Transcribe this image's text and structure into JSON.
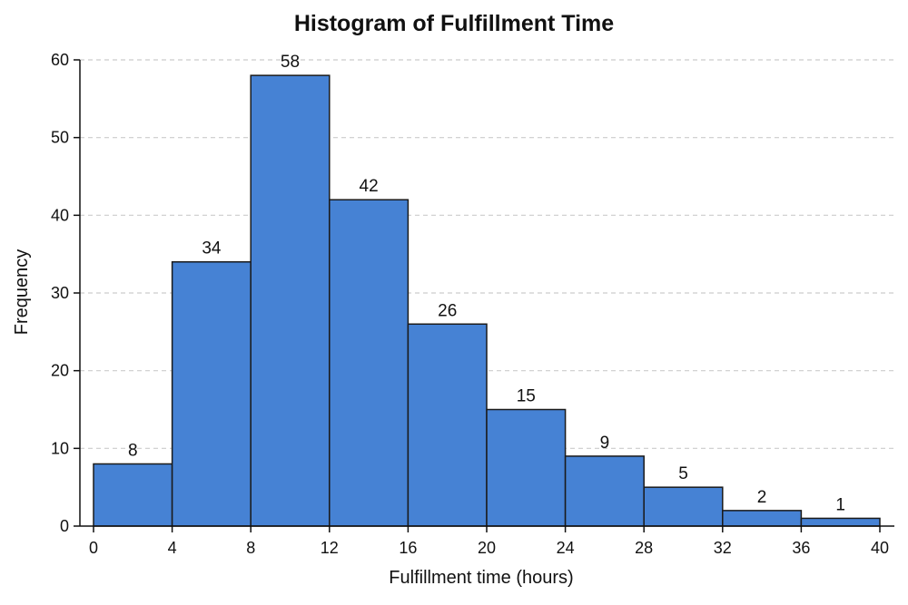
{
  "chart_data": {
    "type": "bar",
    "title": "Histogram of Fulfillment Time",
    "xlabel": "Fulfillment time (hours)",
    "ylabel": "Frequency",
    "bin_edges": [
      0,
      4,
      8,
      12,
      16,
      20,
      24,
      28,
      32,
      36,
      40
    ],
    "bars": [
      {
        "start": 0,
        "end": 4,
        "value": 8
      },
      {
        "start": 4,
        "end": 8,
        "value": 34
      },
      {
        "start": 8,
        "end": 12,
        "value": 58
      },
      {
        "start": 12,
        "end": 16,
        "value": 42
      },
      {
        "start": 16,
        "end": 20,
        "value": 26
      },
      {
        "start": 20,
        "end": 24,
        "value": 15
      },
      {
        "start": 24,
        "end": 28,
        "value": 9
      },
      {
        "start": 28,
        "end": 32,
        "value": 5
      },
      {
        "start": 32,
        "end": 36,
        "value": 2
      },
      {
        "start": 36,
        "end": 40,
        "value": 1
      }
    ],
    "x_ticks": [
      0,
      4,
      8,
      12,
      16,
      20,
      24,
      28,
      32,
      36,
      40
    ],
    "y_ticks": [
      0,
      10,
      20,
      30,
      40,
      50,
      60
    ],
    "xlim": [
      0,
      40
    ],
    "ylim": [
      0,
      60
    ],
    "grid": "horizontal dashed",
    "colors": {
      "bar_fill": "#4682d4",
      "bar_stroke": "#1a1a1a",
      "grid": "#cccccc",
      "axis": "#111111"
    }
  }
}
